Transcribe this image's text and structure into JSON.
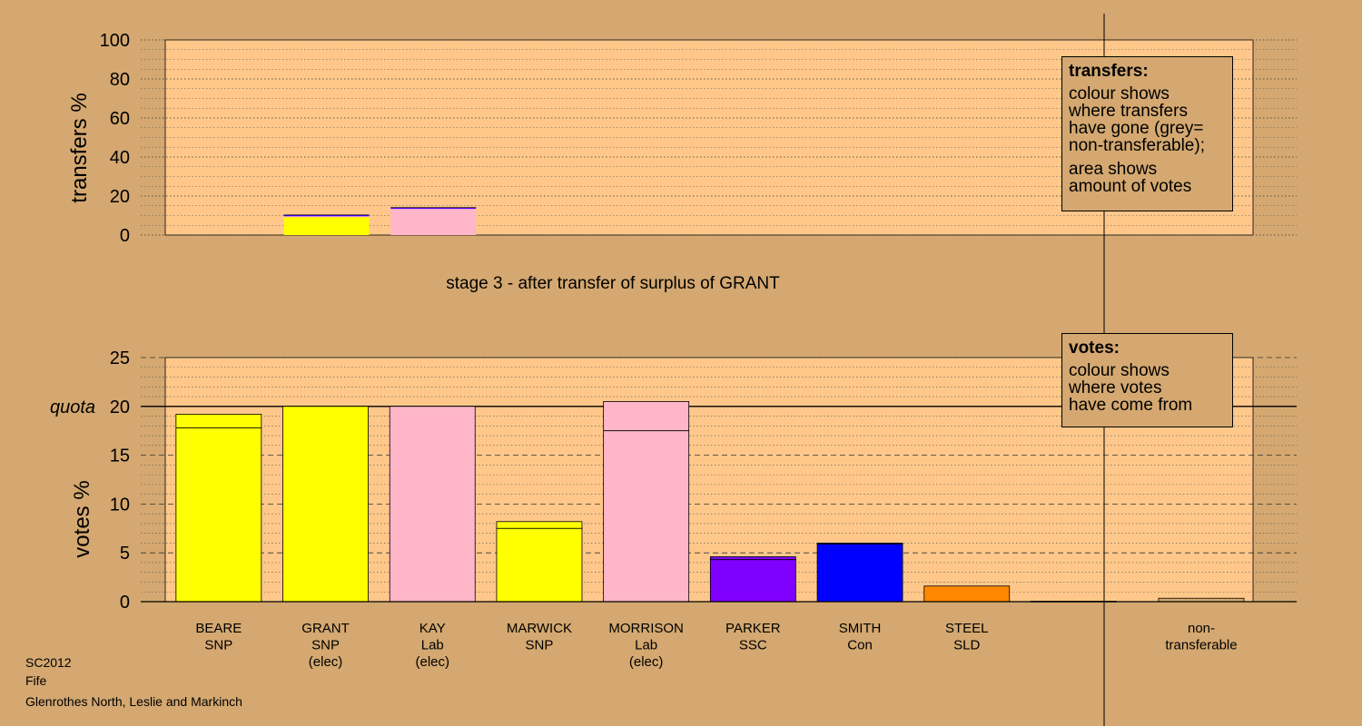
{
  "chart_data": {
    "type": "bar",
    "stage_title": "stage 3 - after transfer of surplus of GRANT",
    "quota_label": "quota",
    "quota": 20,
    "top": {
      "ylabel": "transfers %",
      "ylim": [
        0,
        100
      ],
      "yticks": [
        0,
        20,
        40,
        60,
        80,
        100
      ],
      "bars": [
        {
          "category": "GRANT",
          "segments": [
            {
              "value": 9.2,
              "color": "#ffff00"
            },
            {
              "value": 0.5,
              "color": "#ffb6c8"
            },
            {
              "value": 0.3,
              "color": "#8000ff"
            },
            {
              "value": 0.3,
              "color": "#0000ff"
            }
          ]
        },
        {
          "category": "KAY",
          "segments": [
            {
              "value": 13.5,
              "color": "#ffb6c8"
            },
            {
              "value": 0.3,
              "color": "#8000ff"
            },
            {
              "value": 0.3,
              "color": "#0000ff"
            }
          ]
        }
      ]
    },
    "bottom": {
      "ylabel": "votes %",
      "ylim": [
        0,
        25
      ],
      "yticks": [
        0,
        5,
        10,
        15,
        20,
        25
      ],
      "candidates": [
        {
          "name": "BEARE",
          "party": "SNP",
          "elected": "",
          "color": "#ffff00",
          "base": 17.8,
          "added": 1.4
        },
        {
          "name": "GRANT",
          "party": "SNP",
          "elected": "(elec)",
          "color": "#ffff00",
          "base": 20.0,
          "added": 0
        },
        {
          "name": "KAY",
          "party": "Lab",
          "elected": "(elec)",
          "color": "#ffb6c8",
          "base": 20.0,
          "added": 0
        },
        {
          "name": "MARWICK",
          "party": "SNP",
          "elected": "",
          "color": "#ffff00",
          "base": 7.5,
          "added": 0.7
        },
        {
          "name": "MORRISON",
          "party": "Lab",
          "elected": "(elec)",
          "color": "#ffb6c8",
          "base": 17.5,
          "added": 3.0
        },
        {
          "name": "PARKER",
          "party": "SSC",
          "elected": "",
          "color": "#8000ff",
          "base": 4.3,
          "added": 0.3
        },
        {
          "name": "SMITH",
          "party": "Con",
          "elected": "",
          "color": "#0000ff",
          "base": 5.9,
          "added": 0.1
        },
        {
          "name": "STEEL",
          "party": "SLD",
          "elected": "",
          "color": "#ff8800",
          "base": 1.6,
          "added": 0
        },
        {
          "name": "",
          "party": "",
          "elected": "",
          "color": "#d4a870",
          "base": 0.05,
          "added": 0
        }
      ],
      "nontransferable": {
        "label_line1": "non-",
        "label_line2": "transferable",
        "value": 0.35,
        "color": "#d4a870"
      }
    },
    "legend_top": {
      "title": "transfers:",
      "lines_a": [
        "colour shows",
        "where transfers",
        "have gone (grey=",
        "non-transferable);"
      ],
      "lines_b": [
        "area shows",
        "amount of votes"
      ]
    },
    "legend_bottom": {
      "title": "votes:",
      "lines": [
        "colour shows",
        "where votes",
        "have come from"
      ]
    }
  },
  "footer": {
    "line1": "SC2012",
    "line2": "Fife",
    "line3": "Glenrothes North, Leslie and Markinch"
  },
  "colors": {
    "background": "#d4a870",
    "plot_area": "#ffc88a"
  }
}
